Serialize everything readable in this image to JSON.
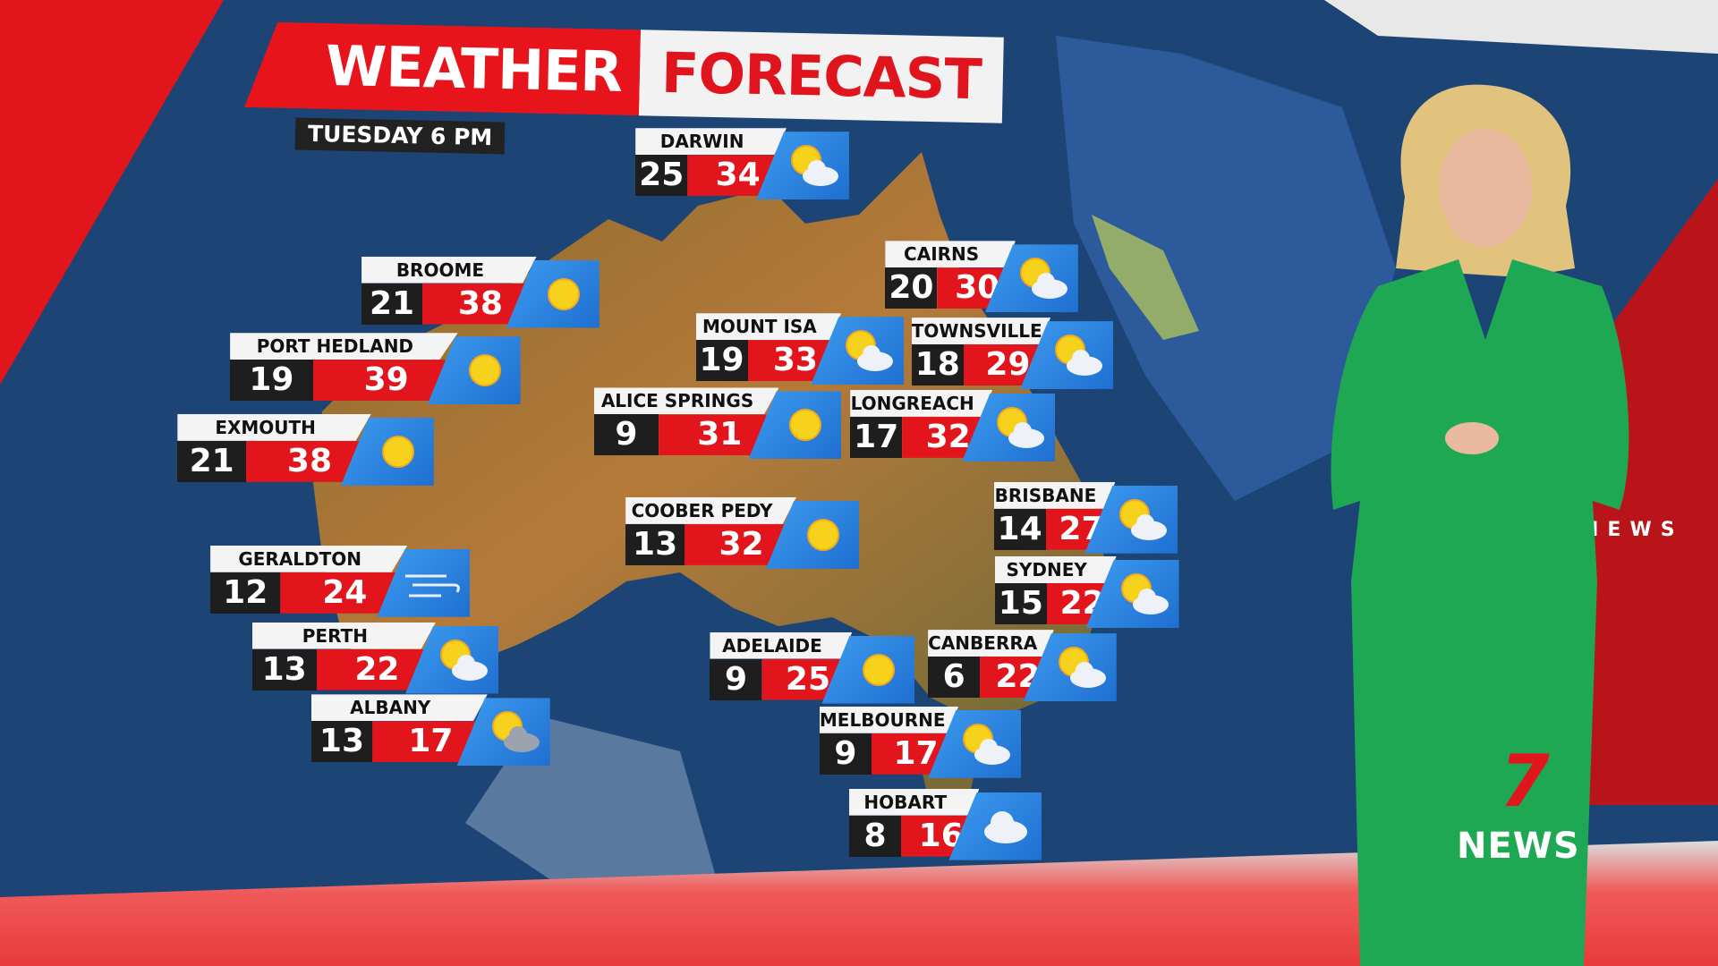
{
  "header": {
    "title_part1": "WEATHER",
    "title_part2": "FORECAST",
    "subtitle": "TUESDAY 6 PM"
  },
  "colors": {
    "brand_red": "#e2141c",
    "min_box": "#1e1e1e",
    "icon_blue": "#3d9cf0",
    "ocean": "#1b3d6e",
    "dress_green": "#1fa854"
  },
  "cities": [
    {
      "name": "DARWIN",
      "min": "25",
      "max": "34",
      "icon": "sun-cloud-icon"
    },
    {
      "name": "BROOME",
      "min": "21",
      "max": "38",
      "icon": "sun-icon"
    },
    {
      "name": "PORT HEDLAND",
      "min": "19",
      "max": "39",
      "icon": "sun-icon"
    },
    {
      "name": "EXMOUTH",
      "min": "21",
      "max": "38",
      "icon": "sun-icon"
    },
    {
      "name": "GERALDTON",
      "min": "12",
      "max": "24",
      "icon": "wind-icon"
    },
    {
      "name": "PERTH",
      "min": "13",
      "max": "22",
      "icon": "sun-cloud-icon"
    },
    {
      "name": "ALBANY",
      "min": "13",
      "max": "17",
      "icon": "sun-grey-cloud-icon"
    },
    {
      "name": "CAIRNS",
      "min": "20",
      "max": "30",
      "icon": "sun-cloud-icon"
    },
    {
      "name": "MOUNT ISA",
      "min": "19",
      "max": "33",
      "icon": "sun-cloud-icon"
    },
    {
      "name": "TOWNSVILLE",
      "min": "18",
      "max": "29",
      "icon": "sun-cloud-icon"
    },
    {
      "name": "ALICE SPRINGS",
      "min": "9",
      "max": "31",
      "icon": "sun-icon"
    },
    {
      "name": "LONGREACH",
      "min": "17",
      "max": "32",
      "icon": "sun-cloud-icon"
    },
    {
      "name": "COOBER PEDY",
      "min": "13",
      "max": "32",
      "icon": "sun-icon"
    },
    {
      "name": "BRISBANE",
      "min": "14",
      "max": "27",
      "icon": "sun-cloud-icon"
    },
    {
      "name": "SYDNEY",
      "min": "15",
      "max": "22",
      "icon": "sun-cloud-icon"
    },
    {
      "name": "ADELAIDE",
      "min": "9",
      "max": "25",
      "icon": "sun-icon"
    },
    {
      "name": "CANBERRA",
      "min": "6",
      "max": "22",
      "icon": "sun-cloud-icon"
    },
    {
      "name": "MELBOURNE",
      "min": "9",
      "max": "17",
      "icon": "sun-cloud-icon"
    },
    {
      "name": "HOBART",
      "min": "8",
      "max": "16",
      "icon": "cloud-icon"
    }
  ],
  "logo": {
    "seven": "7",
    "news": "NEWS"
  },
  "wall_text": "NEWS"
}
